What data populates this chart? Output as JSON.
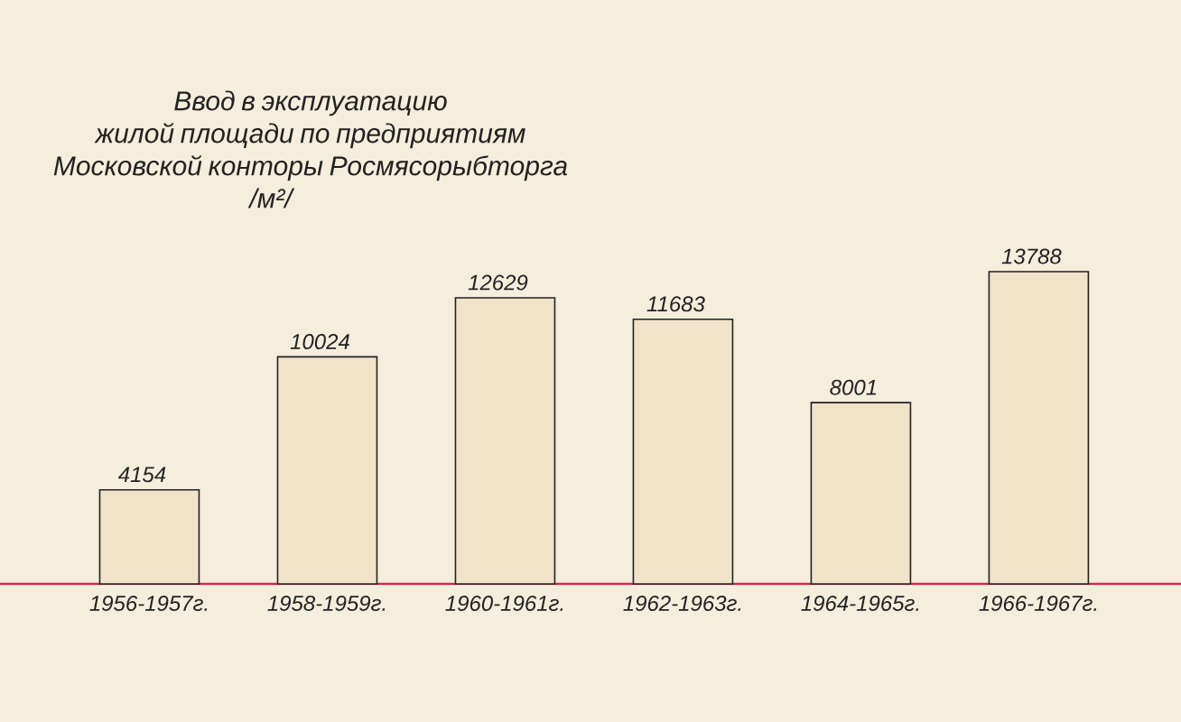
{
  "chart_data": {
    "type": "bar",
    "title": "Ввод в эксплуатацию жилой площади по предприятиям Московской конторы Росмясорыбторга",
    "subtitle": "/м²/",
    "categories": [
      "1956-1957г.",
      "1958-1959г.",
      "1960-1961г.",
      "1962-1963г.",
      "1964-1965г.",
      "1966-1967г."
    ],
    "values": [
      4154,
      10024,
      12629,
      11683,
      8001,
      13788
    ],
    "color": "#f0e3ca",
    "data_labels": true
  }
}
